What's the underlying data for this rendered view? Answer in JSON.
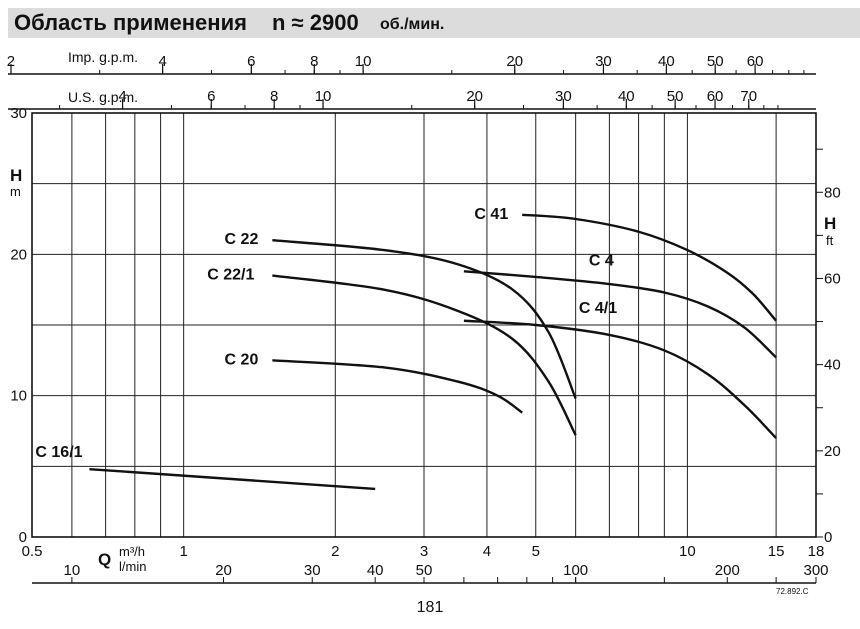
{
  "header": {
    "title": "Область применения",
    "speed": "n ≈ 2900",
    "speed_unit": "об./мин."
  },
  "page_number": "181",
  "drawing_code": "72.892.C",
  "chart_data": {
    "type": "line",
    "x_scale": "log",
    "xlim": [
      0.5,
      18
    ],
    "ylim": [
      0,
      30
    ],
    "ylim_ft": [
      0,
      98.4
    ],
    "grid": true,
    "left_axis": {
      "label": "H",
      "unit": "m",
      "ticks": [
        0,
        10,
        20,
        30
      ]
    },
    "right_axis": {
      "label": "H",
      "unit": "ft",
      "ticks": [
        0,
        20,
        40,
        60,
        80
      ]
    },
    "bottom_axis": {
      "label": "Q",
      "unit1": "m³/h",
      "unit2": "l/min",
      "m3h_ticks": [
        0.5,
        1,
        2,
        3,
        4,
        5,
        10,
        15,
        18
      ],
      "lmin_ticks": [
        10,
        20,
        30,
        40,
        50,
        100,
        200,
        300
      ]
    },
    "imp_gpm_axis": {
      "label": "Imp. g.p.m.",
      "ticks": [
        2,
        4,
        6,
        8,
        10,
        20,
        30,
        40,
        50,
        60
      ]
    },
    "us_gpm_axis": {
      "label": "U.S. g.p.m.",
      "ticks": [
        4,
        6,
        8,
        10,
        20,
        30,
        40,
        50,
        60,
        70
      ]
    },
    "series": [
      {
        "name": "C 16/1",
        "x": [
          0.65,
          2.4
        ],
        "y": [
          4.8,
          3.4
        ]
      },
      {
        "name": "C 20",
        "x": [
          1.5,
          2.5,
          3.5,
          4.2,
          4.7
        ],
        "y": [
          12.5,
          12.0,
          11.0,
          10.0,
          8.8
        ]
      },
      {
        "name": "C 22",
        "x": [
          1.5,
          2.5,
          3.5,
          4.5,
          5.3,
          6.0
        ],
        "y": [
          21.0,
          20.3,
          19.3,
          17.5,
          14.5,
          9.8
        ]
      },
      {
        "name": "C 22/1",
        "x": [
          1.5,
          2.5,
          3.5,
          4.5,
          5.3,
          6.0
        ],
        "y": [
          18.5,
          17.5,
          16.0,
          14.0,
          11.0,
          7.2
        ]
      },
      {
        "name": "C 4",
        "x": [
          3.6,
          5,
          7,
          9,
          11,
          13,
          15
        ],
        "y": [
          18.8,
          18.4,
          17.9,
          17.3,
          16.3,
          14.8,
          12.7
        ]
      },
      {
        "name": "C 4/1",
        "x": [
          3.6,
          5,
          7,
          9,
          11,
          13,
          15
        ],
        "y": [
          15.3,
          15.0,
          14.3,
          13.2,
          11.5,
          9.3,
          7.0
        ]
      },
      {
        "name": "C 41",
        "x": [
          4.7,
          6,
          8,
          10,
          12,
          13.5,
          15
        ],
        "y": [
          22.8,
          22.5,
          21.6,
          20.3,
          18.7,
          17.2,
          15.3
        ]
      }
    ]
  }
}
